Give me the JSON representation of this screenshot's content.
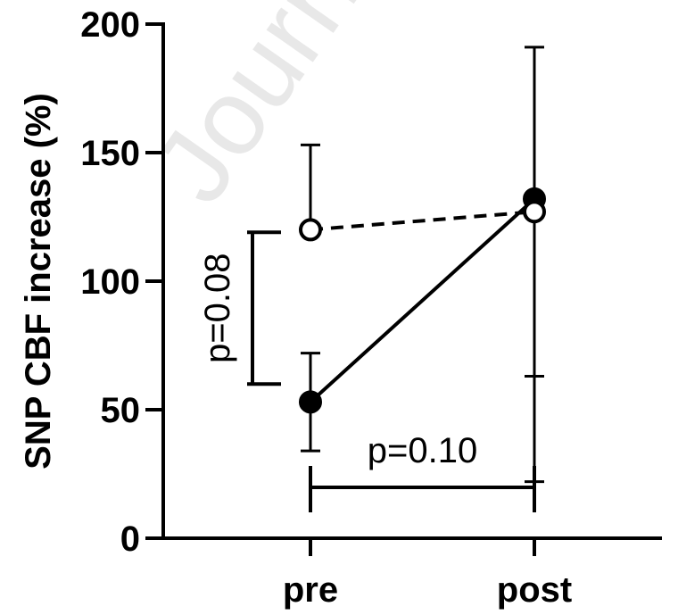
{
  "chart_data": {
    "type": "line",
    "watermark": "Journal",
    "ylabel": "SNP CBF increase (%)",
    "xlabel": "",
    "categories": [
      "pre",
      "post"
    ],
    "ylim": [
      0,
      200
    ],
    "yticks": [
      0,
      50,
      100,
      150,
      200
    ],
    "ytick_labels": [
      "0",
      "50",
      "100",
      "150",
      "200"
    ],
    "grid": false,
    "series": [
      {
        "style": "solid line, filled circle markers",
        "values": [
          53,
          132
        ],
        "error_low": [
          34,
          22
        ],
        "error_high": [
          72,
          191
        ]
      },
      {
        "style": "dashed line, open circle markers",
        "values": [
          120,
          127
        ],
        "error_low": [
          120,
          63
        ],
        "error_high": [
          153,
          127
        ]
      }
    ],
    "annotations": [
      {
        "text": "p=0.08",
        "bracket": "vertical",
        "range": [
          60,
          119
        ]
      },
      {
        "text": "p=0.10",
        "bracket": "horizontal",
        "between": [
          "pre",
          "post"
        ],
        "at_y": 20
      }
    ]
  }
}
